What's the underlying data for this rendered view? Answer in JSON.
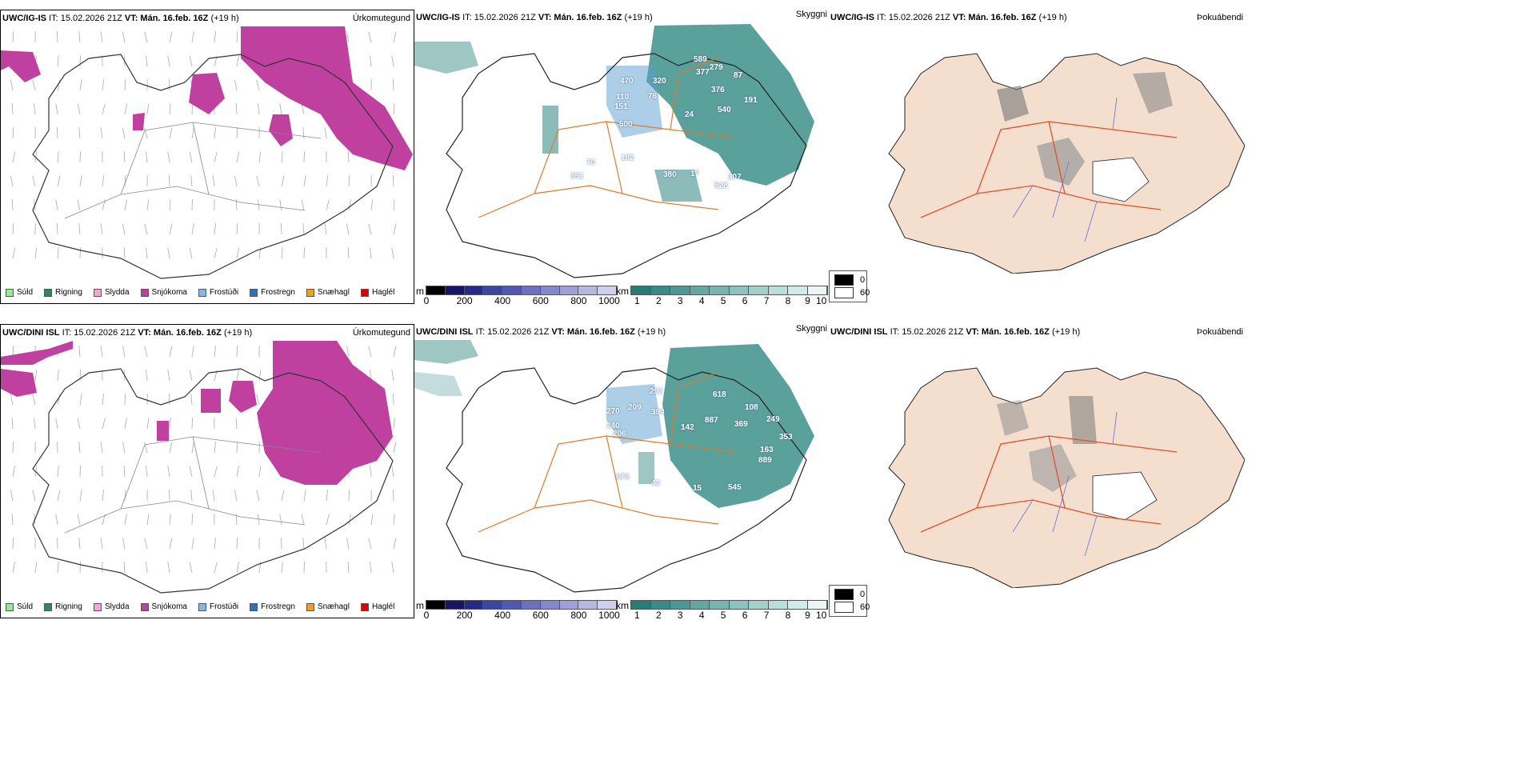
{
  "rows": [
    {
      "id": "uwc-ig-is",
      "panels": {
        "precip": {
          "model": "UWC/IG-IS",
          "it_label": "IT: 15.02.2026 21Z",
          "vt_label": "VT: Mán. 16.feb. 16Z",
          "lead": "(+19 h)",
          "type_label": "Úrkomutegund"
        },
        "visibility": {
          "model": "UWC/IG-IS",
          "it_label": "IT: 15.02.2026 21Z",
          "vt_label": "VT: Mán. 16.feb. 16Z",
          "lead": "(+19 h)",
          "type_label": "Skyggni"
        },
        "fog": {
          "model": "UWC/IG-IS",
          "it_label": "IT: 15.02.2026 21Z",
          "vt_label": "VT: Mán. 16.feb. 16Z",
          "lead": "(+19 h)",
          "type_label": "Þokuábendi"
        }
      },
      "height_labels": [
        "589",
        "279",
        "377",
        "87",
        "376",
        "191",
        "540",
        "24",
        "470",
        "320",
        "110",
        "151",
        "500",
        "76",
        "182",
        "380",
        "17",
        "307",
        "528",
        "351",
        "70"
      ]
    },
    {
      "id": "uwc-dini-isl",
      "panels": {
        "precip": {
          "model": "UWC/DINI ISL",
          "it_label": "IT: 15.02.2026 21Z",
          "vt_label": "VT: Mán. 16.feb. 16Z",
          "lead": "(+19 h)",
          "type_label": "Úrkomutegund"
        },
        "visibility": {
          "model": "UWC/DINI ISL",
          "it_label": "IT: 15.02.2026 21Z",
          "vt_label": "VT: Mán. 16.feb. 16Z",
          "lead": "(+19 h)",
          "type_label": "Skyggni"
        },
        "fog": {
          "model": "UWC/DINI ISL",
          "it_label": "IT: 15.02.2026 21Z",
          "vt_label": "VT: Mán. 16.feb. 16Z",
          "lead": "(+19 h)",
          "type_label": "Þokuábendi"
        }
      },
      "height_labels": [
        "292",
        "618",
        "270",
        "209",
        "394",
        "108",
        "249",
        "240",
        "206",
        "887",
        "142",
        "369",
        "353",
        "163",
        "889",
        "676",
        "43",
        "545",
        "15"
      ]
    }
  ],
  "precip_legend": [
    {
      "label": "Súld",
      "color": "#90ee90"
    },
    {
      "label": "Rigning",
      "color": "#2e8b57"
    },
    {
      "label": "Slydda",
      "color": "#f4a6d8"
    },
    {
      "label": "Snjókoma",
      "color": "#c040a0"
    },
    {
      "label": "Frostúði",
      "color": "#87b6ee"
    },
    {
      "label": "Frostregn",
      "color": "#2f6fbf"
    },
    {
      "label": "Snæhagl",
      "color": "#f0a020"
    },
    {
      "label": "Haglél",
      "color": "#e00000"
    }
  ],
  "height_scale": {
    "unit": "m",
    "ticks": [
      "0",
      "200",
      "400",
      "600",
      "800",
      "1000"
    ],
    "colors": [
      "#000000",
      "#141468",
      "#232a8a",
      "#3a46a0",
      "#5058b0",
      "#6c70c0",
      "#8488cc",
      "#9ea0d8",
      "#b6b8e2",
      "#cfd0ee"
    ]
  },
  "vis_scale": {
    "unit": "km",
    "ticks": [
      "1",
      "2",
      "3",
      "4",
      "5",
      "6",
      "7",
      "8",
      "9",
      "10"
    ],
    "colors": [
      "#2a7a78",
      "#3b8a86",
      "#4e9894",
      "#63a6a2",
      "#78b4b0",
      "#8ec2be",
      "#a4d0cc",
      "#badedb",
      "#d2eae8",
      "#ebf6f5"
    ]
  },
  "fog_scale": [
    {
      "label": "0",
      "color": "#000000"
    },
    {
      "label": "60",
      "color": "#ffffff"
    }
  ],
  "colors": {
    "snow": "#c040a0",
    "vis": "#3d8f8a",
    "road": "#e07a2a",
    "land_fog": "#f4dfcf",
    "roads_fog": "#e0502a",
    "rivers": "#6b7bdc"
  }
}
